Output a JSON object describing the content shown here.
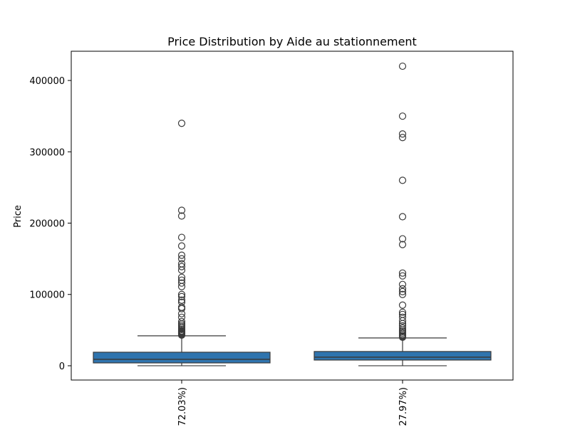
{
  "chart_data": {
    "type": "box",
    "title": "Price Distribution by Aide au stationnement",
    "xlabel": "",
    "ylabel": "Price",
    "ylim": [
      -20000,
      441000
    ],
    "yticks": [
      0,
      100000,
      200000,
      300000,
      400000
    ],
    "ytick_labels": [
      "0",
      "100000",
      "200000",
      "300000",
      "400000"
    ],
    "categories": [
      "72.03%)",
      "27.97%)"
    ],
    "box_color": "#2f74ae",
    "boxes": [
      {
        "category": "72.03%)",
        "whisker_low": 0,
        "q1": 4000,
        "median": 9000,
        "q3": 19000,
        "whisker_high": 42000,
        "outliers": [
          340000,
          218000,
          210000,
          180000,
          168000,
          155000,
          150000,
          143000,
          139000,
          134000,
          124000,
          120000,
          116000,
          111000,
          100000,
          97000,
          92000,
          89000,
          82000,
          80000,
          73000,
          68000,
          62000,
          59000,
          57000,
          55000,
          53000,
          51000,
          49000,
          48000,
          47000,
          46000,
          45000,
          44000,
          43000
        ]
      },
      {
        "category": "27.97%)",
        "whisker_low": 0,
        "q1": 8000,
        "median": 12000,
        "q3": 20000,
        "whisker_high": 39000,
        "outliers": [
          420000,
          350000,
          325000,
          320000,
          260000,
          209000,
          178000,
          170000,
          130000,
          126000,
          114000,
          108000,
          104000,
          100000,
          85000,
          75000,
          72000,
          68000,
          63000,
          59000,
          56000,
          53000,
          50000,
          48000,
          46000,
          44000,
          42000,
          41000,
          40000
        ]
      }
    ]
  }
}
